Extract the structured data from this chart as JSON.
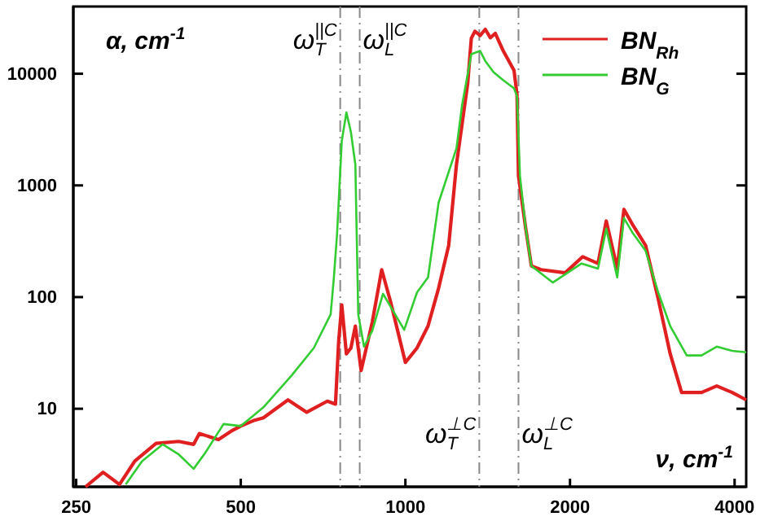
{
  "chart_data": {
    "type": "line",
    "xlabel": "ν, cm$^{-1}$",
    "ylabel": "α, cm$^{-1}$",
    "log": "xy",
    "grid": false,
    "legend": "top right",
    "marker": "none",
    "line_style": "solid",
    "xlim": [
      247,
      4200
    ],
    "xticks": [
      250,
      500,
      1000,
      2000,
      4000
    ],
    "ylim": [
      2,
      40000
    ],
    "yticks": [
      10,
      100,
      1000,
      10000
    ],
    "series": [
      {
        "name": "BN$_{Rh}$",
        "color": "#e02020",
        "x": [
          260,
          280,
          300,
          320,
          350,
          385,
          410,
          420,
          455,
          480,
          500,
          530,
          550,
          610,
          660,
          720,
          745,
          755,
          765,
          780,
          795,
          810,
          830,
          870,
          905,
          940,
          1000,
          1050,
          1100,
          1150,
          1200,
          1240,
          1300,
          1320,
          1340,
          1370,
          1400,
          1430,
          1460,
          1510,
          1580,
          1600,
          1610,
          1660,
          1700,
          1770,
          1960,
          2110,
          2250,
          2330,
          2440,
          2510,
          2600,
          2750,
          2900,
          3050,
          3200,
          3480,
          3710,
          3960,
          4200
        ],
        "values": [
          2.0,
          2.7,
          2.1,
          3.4,
          4.9,
          5.1,
          4.8,
          6.0,
          5.3,
          6.3,
          7.0,
          7.9,
          8.3,
          12,
          9.3,
          11.7,
          11,
          40,
          85,
          31,
          35,
          55,
          22,
          60,
          176,
          90,
          26,
          35,
          55,
          120,
          290,
          1540,
          8180,
          20800,
          24000,
          22000,
          25000,
          21000,
          23000,
          16000,
          10700,
          6500,
          1220,
          410,
          190,
          176,
          165,
          230,
          200,
          480,
          180,
          610,
          450,
          290,
          96,
          31,
          14,
          14,
          16,
          14,
          12
        ]
      },
      {
        "name": "BN$_{G}$",
        "color": "#33cc33",
        "x": [
          308,
          330,
          360,
          385,
          410,
          430,
          465,
          500,
          550,
          620,
          680,
          730,
          740,
          750,
          765,
          780,
          795,
          810,
          820,
          840,
          870,
          910,
          995,
          1050,
          1100,
          1150,
          1240,
          1270,
          1320,
          1370,
          1400,
          1450,
          1510,
          1580,
          1600,
          1620,
          1660,
          1700,
          1860,
          2100,
          2250,
          2330,
          2440,
          2510,
          2600,
          2750,
          2900,
          3050,
          3270,
          3480,
          3710,
          3960,
          4200
        ],
        "values": [
          2.1,
          3.4,
          4.8,
          3.9,
          2.9,
          4.0,
          7.3,
          7.0,
          10.3,
          20,
          35,
          70,
          150,
          370,
          2500,
          4500,
          3000,
          1540,
          70,
          36,
          50,
          107,
          51,
          110,
          150,
          700,
          2150,
          5300,
          15000,
          16000,
          13000,
          10300,
          8750,
          7400,
          6300,
          1220,
          410,
          190,
          135,
          200,
          180,
          410,
          150,
          510,
          380,
          260,
          110,
          55,
          30,
          30,
          36,
          33,
          32
        ]
      }
    ],
    "ref_lines": [
      {
        "axis": "x",
        "value": 760,
        "label": "ω$^{||C}$$_{T}$",
        "color": "#888888",
        "line_style": "dashed"
      },
      {
        "axis": "x",
        "value": 825,
        "label": "ω$^{||C}$$_{L}$",
        "color": "#888888",
        "line_style": "dashed"
      },
      {
        "axis": "x",
        "value": 1365,
        "label": "ω$^{⊥C}$$_{T}$",
        "color": "#888888",
        "line_style": "dashed"
      },
      {
        "axis": "x",
        "value": 1610,
        "label": "ω$^{⊥C}$$_{L}$",
        "color": "#888888",
        "line_style": "dashed"
      }
    ]
  }
}
